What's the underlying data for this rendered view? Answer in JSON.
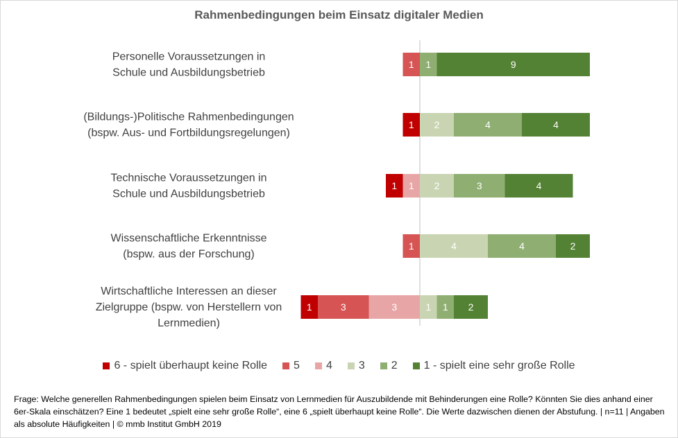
{
  "title": "Rahmenbedingungen  beim Einsatz  digitaler  Medien",
  "footnote": "Frage: Welche generellen Rahmenbedingungen spielen beim Einsatz von Lernmedien für Auszubildende mit Behinderungen eine Rolle? Könnten Sie dies anhand einer 6er-Skala einschätzen? Eine 1 bedeutet „spielt eine sehr große Rolle“, eine 6 „spielt überhaupt keine Rolle“. Die Werte dazwischen dienen der Abstufung. | n=11  | Angaben als absolute Häufigkeiten  | © mmb Institut GmbH 2019",
  "legend": [
    {
      "label": "6 - spielt überhaupt keine Rolle",
      "color": "#C00000"
    },
    {
      "label": "5",
      "color": "#D65454"
    },
    {
      "label": "4",
      "color": "#E8A5A5"
    },
    {
      "label": "3",
      "color": "#C9D4B2"
    },
    {
      "label": "2",
      "color": "#8FAE72"
    },
    {
      "label": "1 - spielt eine sehr große Rolle",
      "color": "#548235"
    }
  ],
  "chart_data": {
    "type": "bar",
    "orientation": "horizontal",
    "stacking": "diverging",
    "title": "Rahmenbedingungen  beim Einsatz  digitaler  Medien",
    "categories": [
      [
        "Personelle Voraussetzungen in",
        "Schule und Ausbildungsbetrieb"
      ],
      [
        "(Bildungs-)Politische Rahmenbedingungen",
        "(bspw. Aus- und Fortbildungsregelungen)"
      ],
      [
        "Technische Voraussetzungen in",
        "Schule und Ausbildungsbetrieb"
      ],
      [
        "Wissenschaftliche Erkenntnisse",
        "(bspw. aus der Forschung)"
      ],
      [
        "Wirtschaftliche Interessen an dieser",
        "Zielgruppe (bspw. von Herstellern von",
        "Lernmedien)"
      ]
    ],
    "series": [
      {
        "name": "6 - spielt überhaupt keine Rolle",
        "values": [
          0,
          1,
          1,
          0,
          1
        ],
        "color": "#C00000",
        "label_color": "#ffffff"
      },
      {
        "name": "5",
        "values": [
          1,
          0,
          0,
          1,
          3
        ],
        "color": "#D65454",
        "label_color": "#ffffff"
      },
      {
        "name": "4",
        "values": [
          0,
          0,
          1,
          0,
          3
        ],
        "color": "#E8A5A5",
        "label_color": "#ffffff"
      },
      {
        "name": "3",
        "values": [
          0,
          2,
          2,
          4,
          1
        ],
        "color": "#C9D4B2",
        "label_color": "#ffffff"
      },
      {
        "name": "2",
        "values": [
          1,
          4,
          3,
          4,
          1
        ],
        "color": "#8FAE72",
        "label_color": "#ffffff"
      },
      {
        "name": "1 - spielt eine sehr große Rolle",
        "values": [
          9,
          4,
          4,
          2,
          2
        ],
        "color": "#548235",
        "label_color": "#ffffff"
      }
    ],
    "negative_series": [
      "6 - spielt überhaupt keine Rolle",
      "5",
      "4"
    ],
    "positive_series": [
      "3",
      "2",
      "1 - spielt eine sehr große Rolle"
    ],
    "legend_position": "bottom",
    "grid": false
  }
}
